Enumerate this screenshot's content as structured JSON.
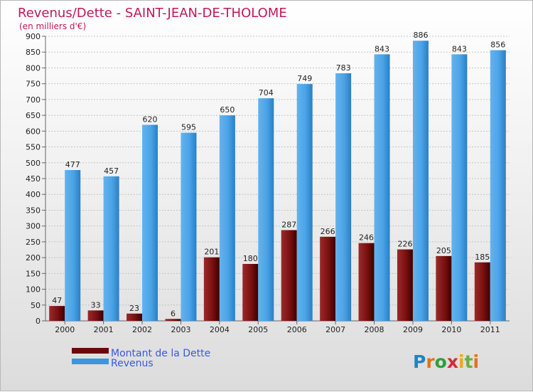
{
  "chart_data": {
    "type": "bar",
    "title": "Revenus/Dette - SAINT-JEAN-DE-THOLOME",
    "subtitle": "(en milliers d'€)",
    "categories": [
      "2000",
      "2001",
      "2002",
      "2003",
      "2004",
      "2005",
      "2006",
      "2007",
      "2008",
      "2009",
      "2010",
      "2011"
    ],
    "series": [
      {
        "name": "Montant de la Dette",
        "color": "#6b0a0a",
        "values": [
          47,
          33,
          23,
          6,
          201,
          180,
          287,
          266,
          246,
          226,
          205,
          185
        ]
      },
      {
        "name": "Revenus",
        "color": "#3e95dd",
        "values": [
          477,
          457,
          620,
          595,
          650,
          704,
          749,
          783,
          843,
          886,
          843,
          856
        ]
      }
    ],
    "ylim": [
      0,
      900
    ],
    "yticks": [
      0,
      50,
      100,
      150,
      200,
      250,
      300,
      350,
      400,
      450,
      500,
      550,
      600,
      650,
      700,
      750,
      800,
      850,
      900
    ],
    "grid": true,
    "legend_position": "bottom-left"
  },
  "logo": {
    "letters": [
      "P",
      "r",
      "o",
      "x",
      "i",
      "t",
      "i"
    ],
    "colors": [
      "#1c86c6",
      "#e0731b",
      "#2e9e3c",
      "#d72a36",
      "#e9a91b",
      "#6ab03d",
      "#e0731b"
    ]
  }
}
